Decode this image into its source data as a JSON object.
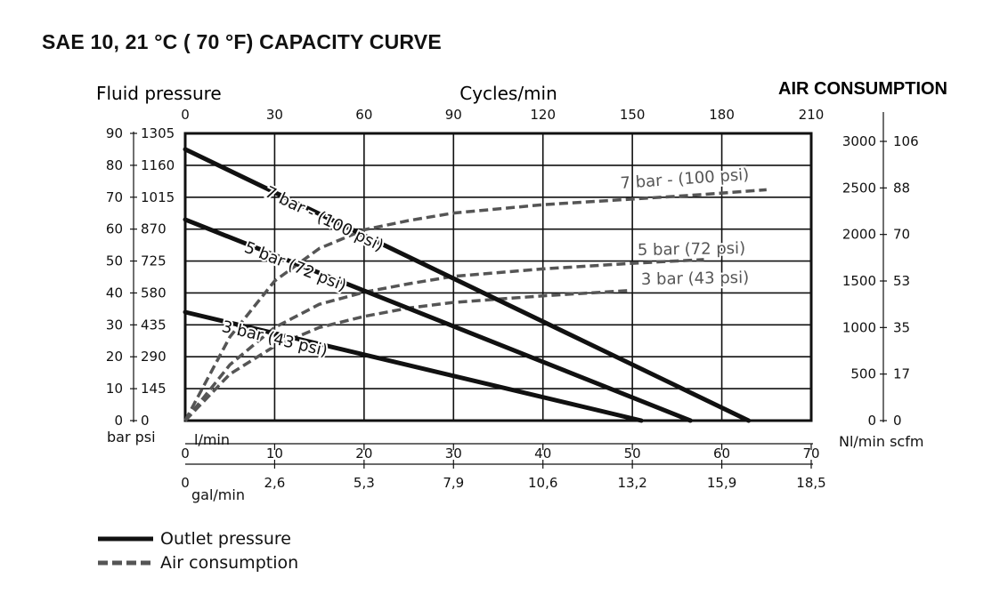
{
  "title": "SAE 10, 21 °C ( 70 °F) CAPACITY CURVE",
  "colors": {
    "outlet": "#111111",
    "air": "#555555",
    "grid": "#111111"
  },
  "chart_data": {
    "type": "line",
    "title": "SAE 10, 21 °C ( 70 °F) CAPACITY CURVE",
    "left_axis_title": "Fluid pressure",
    "left_units": "bar psi",
    "left_bar_ticks": [
      "0",
      "10",
      "20",
      "30",
      "40",
      "50",
      "60",
      "70",
      "80",
      "90"
    ],
    "left_psi_ticks": [
      "0",
      "145",
      "290",
      "435",
      "580",
      "725",
      "870",
      "1015",
      "1160",
      "1305"
    ],
    "ylim_bar": [
      0,
      90
    ],
    "top_axis_title": "Cycles/min",
    "top_ticks": [
      "0",
      "30",
      "60",
      "90",
      "120",
      "150",
      "180",
      "210"
    ],
    "bottom_lmin_label": "l/min",
    "bottom_lmin_ticks": [
      "0",
      "10",
      "20",
      "30",
      "40",
      "50",
      "60",
      "70"
    ],
    "xlim_lmin": [
      0,
      70
    ],
    "bottom_gal_label": "gal/min",
    "bottom_gal_ticks": [
      "0",
      "2,6",
      "5,3",
      "7,9",
      "10,6",
      "13,2",
      "15,9",
      "18,5"
    ],
    "right_axis_title": "AIR CONSUMPTION",
    "right_units": "Nl/min scfm",
    "right_nl_ticks": [
      "0",
      "500",
      "1000",
      "1500",
      "2000",
      "2500",
      "3000"
    ],
    "right_scfm_ticks": [
      "0",
      "17",
      "35",
      "53",
      "70",
      "88",
      "106"
    ],
    "ylim_nl": [
      0,
      3086
    ],
    "outlet_series": [
      {
        "label": "7 bar - (100 psi)",
        "points": [
          [
            0,
            85
          ],
          [
            63,
            0
          ]
        ]
      },
      {
        "label": "5 bar (72 psi)",
        "points": [
          [
            0,
            63
          ],
          [
            56.5,
            0
          ]
        ]
      },
      {
        "label": "3 bar (43 psi)",
        "points": [
          [
            0,
            34
          ],
          [
            51,
            0
          ]
        ]
      }
    ],
    "air_series": [
      {
        "label": "7 bar - (100 psi)",
        "points": [
          [
            0,
            0
          ],
          [
            5,
            900
          ],
          [
            10,
            1500
          ],
          [
            15,
            1850
          ],
          [
            20,
            2050
          ],
          [
            25,
            2150
          ],
          [
            30,
            2230
          ],
          [
            40,
            2320
          ],
          [
            50,
            2380
          ],
          [
            58,
            2430
          ],
          [
            65,
            2480
          ]
        ]
      },
      {
        "label": "5 bar (72 psi)",
        "points": [
          [
            0,
            0
          ],
          [
            5,
            600
          ],
          [
            10,
            1000
          ],
          [
            15,
            1250
          ],
          [
            20,
            1380
          ],
          [
            25,
            1470
          ],
          [
            30,
            1550
          ],
          [
            40,
            1630
          ],
          [
            50,
            1690
          ],
          [
            58,
            1730
          ]
        ]
      },
      {
        "label": "3 bar (43 psi)",
        "points": [
          [
            0,
            0
          ],
          [
            5,
            500
          ],
          [
            10,
            800
          ],
          [
            15,
            1000
          ],
          [
            20,
            1120
          ],
          [
            25,
            1210
          ],
          [
            30,
            1270
          ],
          [
            40,
            1340
          ],
          [
            50,
            1400
          ]
        ]
      }
    ],
    "grid": true,
    "legend_position": "bottom-left"
  },
  "legend": {
    "outlet": "Outlet pressure",
    "air": "Air consumption"
  }
}
